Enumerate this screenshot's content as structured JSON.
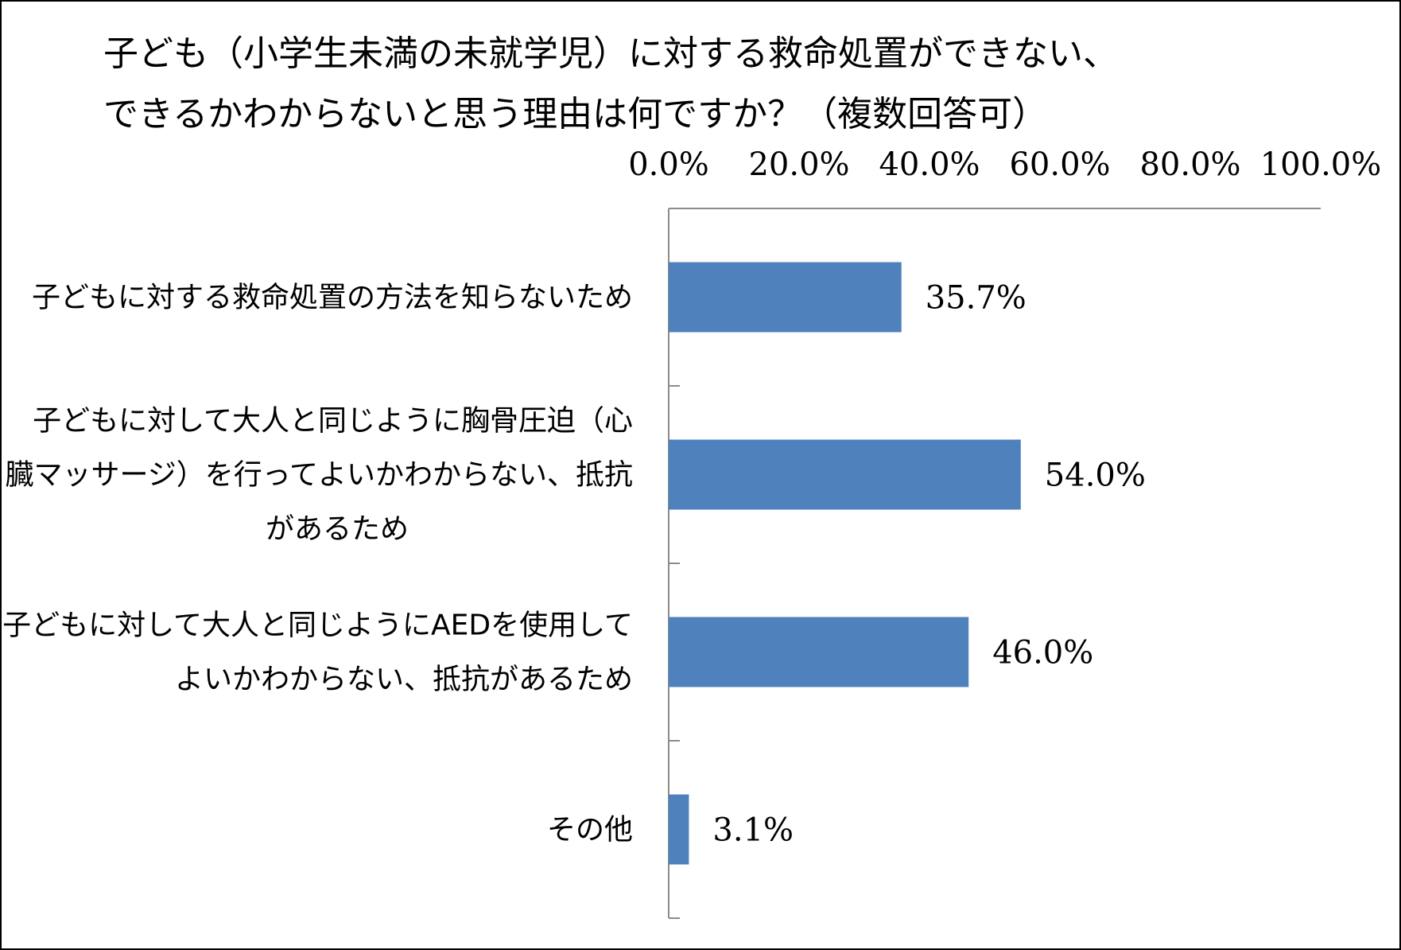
{
  "title_lines": [
    "子ども（小学生未満の未就学児）に対する救命処置ができない、",
    "できるかわからないと思う理由は何ですか？（複数回答可）"
  ],
  "chart_data": {
    "type": "bar",
    "orientation": "horizontal",
    "categories": [
      [
        "子どもに対する救命処置の方法を知らないため"
      ],
      [
        "子どもに対して大人と同じように胸骨圧迫（心",
        "臓マッサージ）を行ってよいかわからない、抵抗",
        "があるため"
      ],
      [
        "子どもに対して大人と同じようにAEDを使用して",
        "よいかわからない、抵抗があるため"
      ],
      [
        "その他"
      ]
    ],
    "values": [
      35.7,
      54.0,
      46.0,
      3.1
    ],
    "data_labels": [
      "35.7%",
      "54.0%",
      "46.0%",
      "3.1%"
    ],
    "x_ticks": [
      "0.0%",
      "20.0%",
      "40.0%",
      "60.0%",
      "80.0%",
      "100.0%"
    ],
    "xlim": [
      0,
      100
    ],
    "axis_position": "top",
    "grid": false,
    "legend": "none",
    "bar_color": "#4f81bd",
    "axis_color": "#8c8c8c"
  }
}
